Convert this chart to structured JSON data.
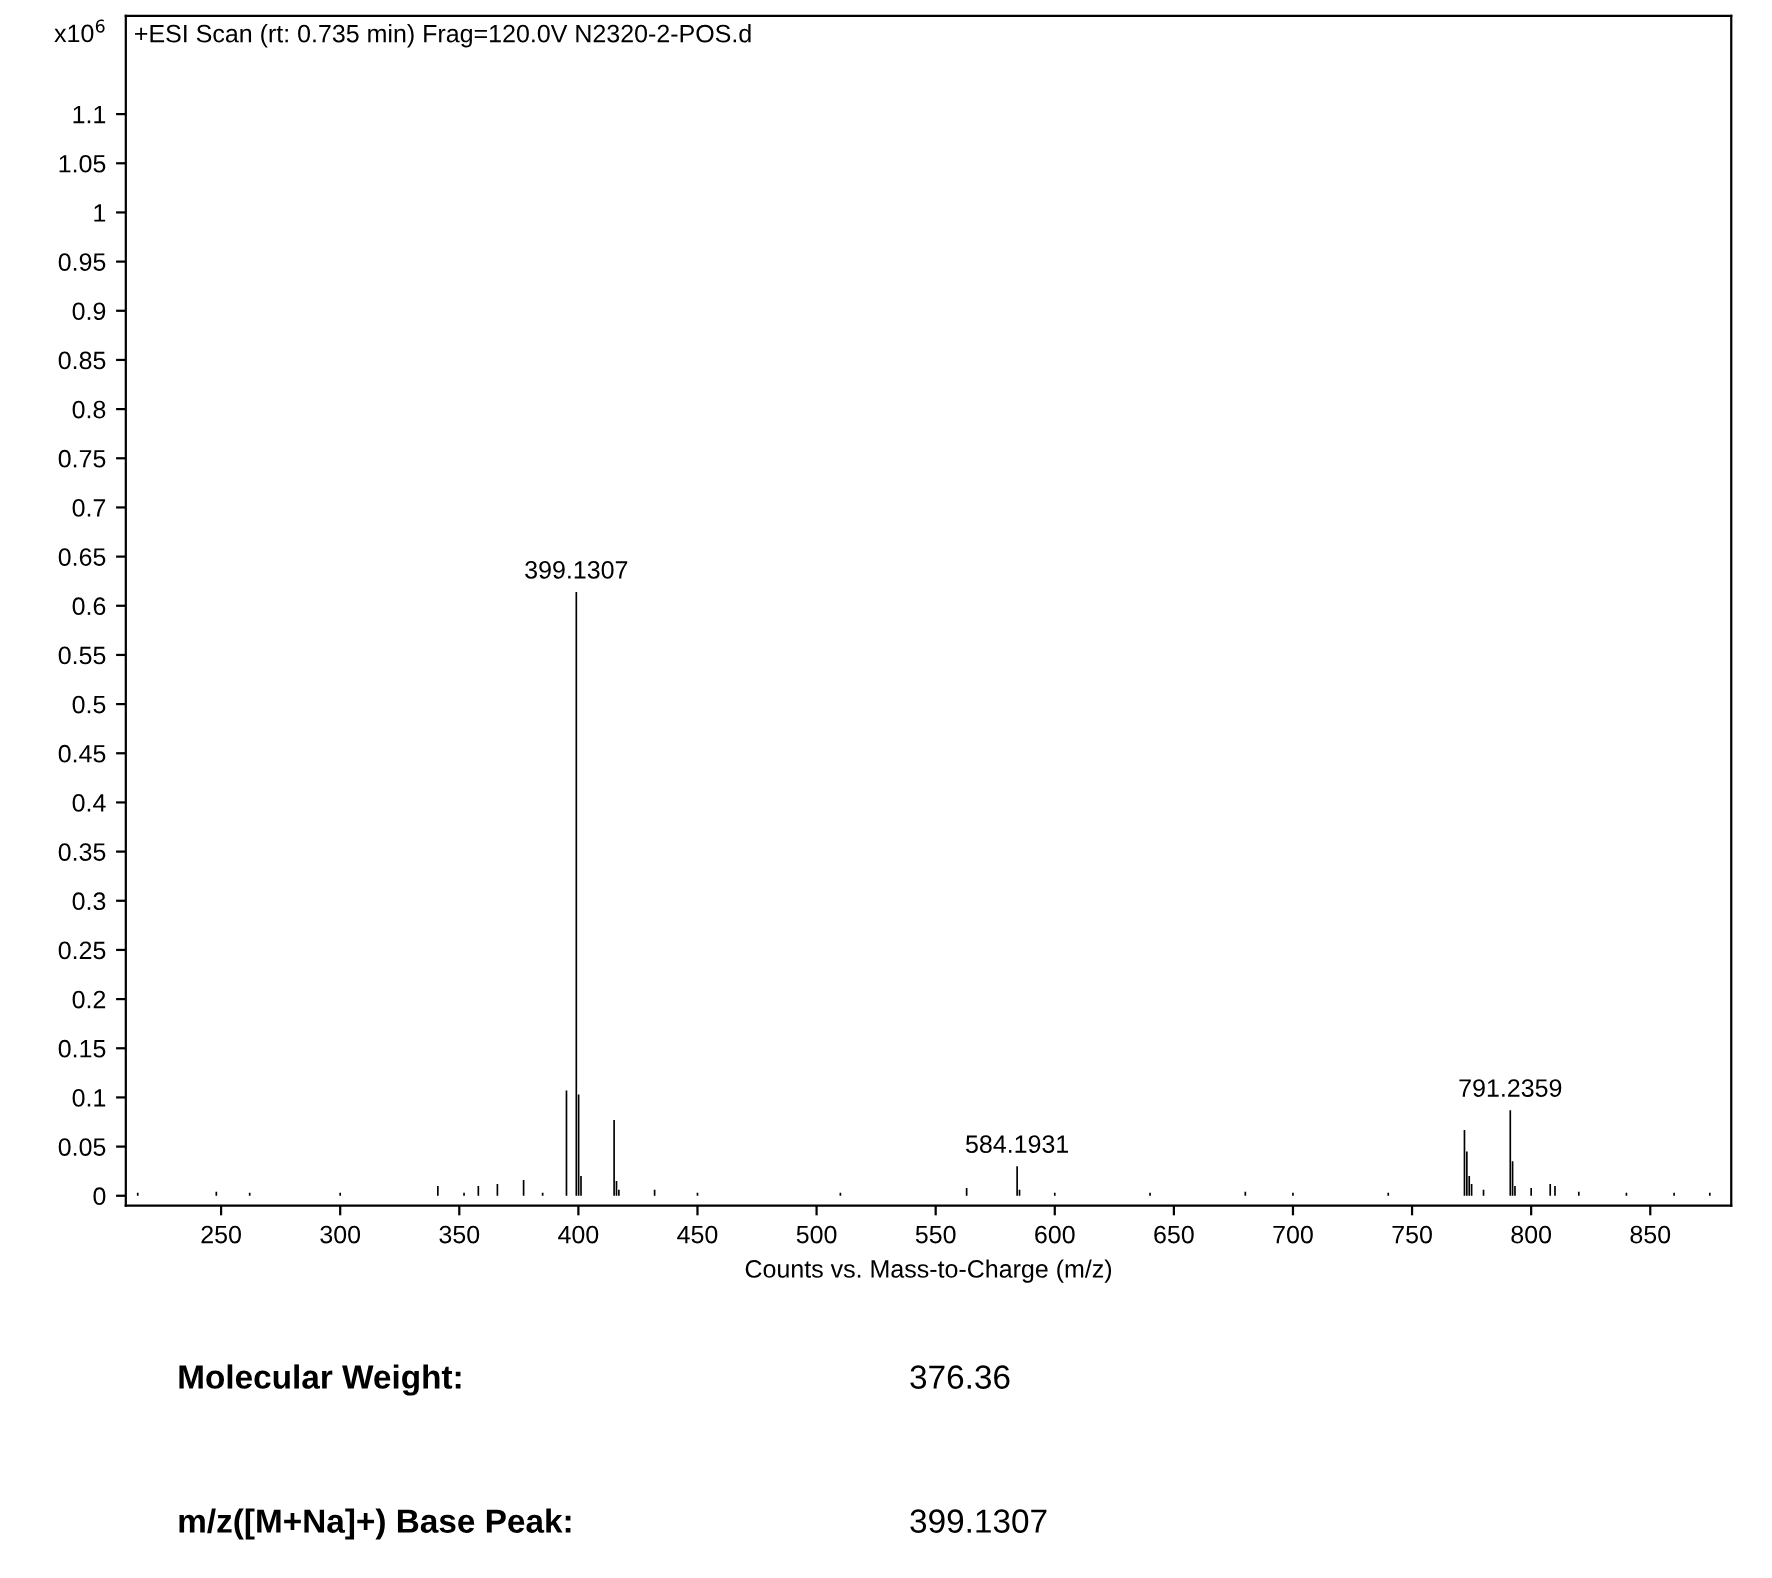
{
  "chart_data": {
    "type": "bar",
    "title": "+ESI Scan (rt: 0.735 min) Frag=120.0V N2320-2-POS.d",
    "xlabel": "Counts vs. Mass-to-Charge (m/z)",
    "ylabel": "x10$^{6}$",
    "x": [
      215,
      248,
      262,
      300,
      341,
      352,
      358,
      366,
      377,
      385,
      395,
      399.1307,
      400.1,
      401.1,
      415,
      416,
      417,
      432,
      450,
      510,
      563,
      584.1931,
      585.2,
      600,
      640,
      680,
      700,
      740,
      772,
      773,
      774,
      775,
      780,
      791.2359,
      792.2,
      793.2,
      800,
      808,
      810,
      820,
      840,
      860,
      875
    ],
    "values": [
      0.003,
      0.004,
      0.003,
      0.003,
      0.01,
      0.003,
      0.01,
      0.012,
      0.016,
      0.003,
      0.107,
      0.614,
      0.103,
      0.02,
      0.077,
      0.015,
      0.006,
      0.006,
      0.003,
      0.003,
      0.008,
      0.03,
      0.006,
      0.003,
      0.003,
      0.004,
      0.003,
      0.003,
      0.067,
      0.045,
      0.02,
      0.012,
      0.006,
      0.087,
      0.035,
      0.01,
      0.008,
      0.012,
      0.01,
      0.004,
      0.003,
      0.003,
      0.003
    ],
    "color": "#000000",
    "xlim": [
      210,
      884
    ],
    "ylim": [
      -0.01,
      1.2
    ],
    "xticks": [
      250,
      300,
      350,
      400,
      450,
      500,
      550,
      600,
      650,
      700,
      750,
      800,
      850
    ],
    "yticks": [
      0,
      0.05,
      0.1,
      0.15,
      0.2,
      0.25,
      0.3,
      0.35,
      0.4,
      0.45,
      0.5,
      0.55,
      0.6,
      0.65,
      0.7,
      0.75,
      0.8,
      0.85,
      0.9,
      0.95,
      1,
      1.05,
      1.1
    ],
    "grid": false,
    "annotations": [
      {
        "text": "399.1307",
        "x": 399.1307,
        "y": 0.614
      },
      {
        "text": "584.1931",
        "x": 584.1931,
        "y": 0.03
      },
      {
        "text": "791.2359",
        "x": 791.2359,
        "y": 0.087
      },
      "Molecular Weight:",
      "376.36",
      "m/z([M+Na]+) Base Peak:",
      "399.1307"
    ]
  }
}
